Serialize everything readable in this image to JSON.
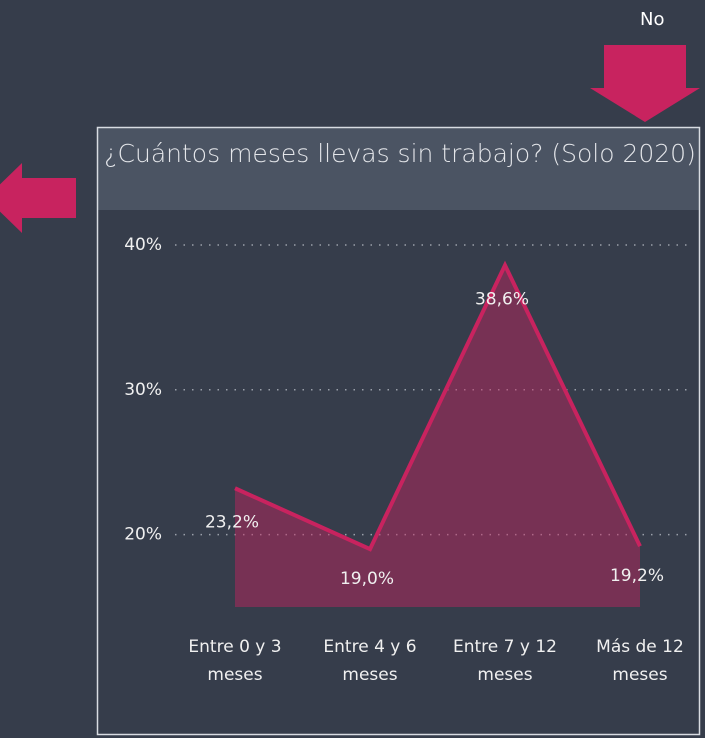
{
  "header": {
    "label": "No"
  },
  "chart_data": {
    "type": "area",
    "title": "¿Cuántos meses llevas sin trabajo? (Solo 2020)",
    "categories": [
      "Entre 0 y 3 meses",
      "Entre 4 y 6 meses",
      "Entre 7 y 12 meses",
      "Más de 12 meses"
    ],
    "values": [
      23.2,
      19.0,
      38.6,
      19.2
    ],
    "value_labels": [
      "23,2%",
      "19,0%",
      "38,6%",
      "19,2%"
    ],
    "color": "#c8235f",
    "ylim": [
      15,
      41
    ],
    "yticks": [
      {
        "value": 20,
        "label": "20%"
      },
      {
        "value": 30,
        "label": "30%"
      },
      {
        "value": 40,
        "label": "40%"
      }
    ],
    "grid": true
  }
}
